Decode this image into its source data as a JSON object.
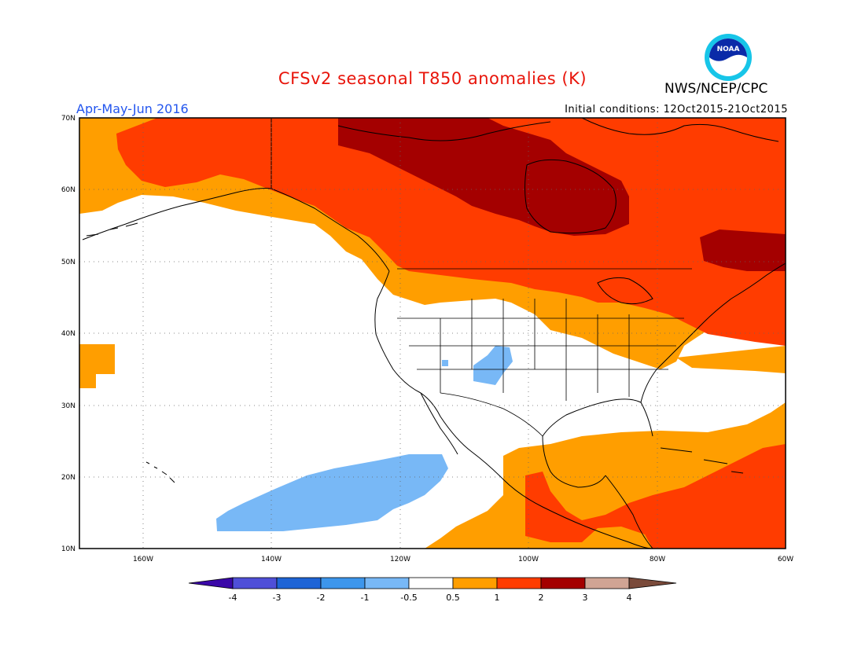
{
  "title": "CFSv2 seasonal T850 anomalies (K)",
  "agency": "NWS/NCEP/CPC",
  "logo_text": "NOAA",
  "period": "Apr-May-Jun 2016",
  "initial_conditions": "Initial conditions: 12Oct2015-21Oct2015",
  "colors": {
    "title": "#e8140a",
    "period": "#2255ee",
    "neg4": "#3a08a8",
    "neg3": "#4f4fd8",
    "neg2": "#1e64d6",
    "neg1": "#3d96ec",
    "neg05": "#78b8f6",
    "neutral": "#ffffff",
    "pos05": "#ff9e00",
    "pos1": "#ff3c00",
    "pos2": "#a40000",
    "pos3": "#d0a494",
    "pos4": "#7a4a3a"
  },
  "map": {
    "lon_range": [
      -171,
      -60
    ],
    "lat_range": [
      10,
      70
    ],
    "lat_ticks": [
      "70N",
      "60N",
      "50N",
      "40N",
      "30N",
      "20N",
      "10N"
    ],
    "lon_ticks": [
      "160W",
      "140W",
      "120W",
      "100W",
      "80W",
      "60W"
    ]
  },
  "colorbar": {
    "labels": [
      "-4",
      "-3",
      "-2",
      "-1",
      "-0.5",
      "0.5",
      "1",
      "2",
      "3",
      "4"
    ]
  }
}
